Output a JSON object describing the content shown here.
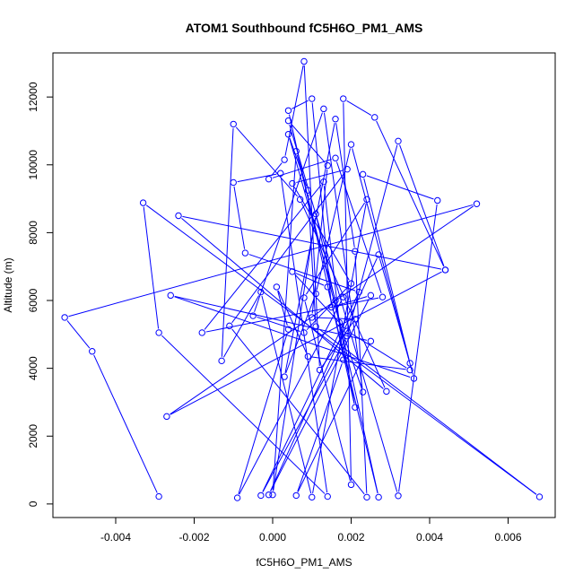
{
  "chart_data": {
    "type": "line",
    "title": "ATOM1 Southbound fC5H6O_PM1_AMS",
    "xlabel": "fC5H6O_PM1_AMS",
    "ylabel": "Altitude (m)",
    "xlim": [
      -0.0056,
      0.0072
    ],
    "ylim": [
      -400,
      13300
    ],
    "xticks": [
      -0.004,
      -0.002,
      0.0,
      0.002,
      0.004,
      0.006
    ],
    "xtick_labels": [
      "-0.004",
      "-0.002",
      "0.000",
      "0.002",
      "0.004",
      "0.006"
    ],
    "yticks": [
      0,
      2000,
      4000,
      6000,
      8000,
      10000,
      12000
    ],
    "ytick_labels": [
      "0",
      "2000",
      "4000",
      "6000",
      "8000",
      "10000",
      "12000"
    ],
    "grid": false,
    "series": [
      {
        "color": "#0000ff",
        "marker": "open-circle",
        "points": [
          [
            -0.0029,
            220
          ],
          [
            -0.0046,
            4500
          ],
          [
            -0.0053,
            5500
          ],
          [
            0.0052,
            8850
          ],
          [
            -0.0027,
            2580
          ],
          [
            0.0044,
            6900
          ],
          [
            -0.0024,
            8500
          ],
          [
            0.0029,
            3320
          ],
          [
            0.0007,
            8980
          ],
          [
            -0.001,
            11200
          ],
          [
            -0.0013,
            4220
          ],
          [
            -0.0003,
            6250
          ],
          [
            0.001,
            200
          ],
          [
            0.0024,
            8980
          ],
          [
            0.0008,
            6080
          ],
          [
            0.002,
            570
          ],
          [
            0.0018,
            11950
          ],
          [
            0.0026,
            11400
          ],
          [
            0.0044,
            6900
          ],
          [
            0.0032,
            10700
          ],
          [
            0.0019,
            4950
          ],
          [
            -0.0003,
            250
          ],
          [
            0.0022,
            6250
          ],
          [
            -0.0007,
            7400
          ],
          [
            -0.001,
            9480
          ],
          [
            0.0002,
            9750
          ],
          [
            0.0014,
            220
          ],
          [
            -0.0029,
            5050
          ],
          [
            -0.0033,
            8880
          ],
          [
            0.0068,
            210
          ],
          [
            0.0011,
            5230
          ],
          [
            0.0009,
            9250
          ],
          [
            0.0004,
            10900
          ],
          [
            0.0016,
            6000
          ],
          [
            0.0021,
            2850
          ],
          [
            0.0004,
            11600
          ],
          [
            0.001,
            11950
          ],
          [
            0.0015,
            5800
          ],
          [
            0.0025,
            6150
          ],
          [
            -0.0001,
            270
          ],
          [
            0.0027,
            7350
          ],
          [
            0.0035,
            4150
          ],
          [
            0.0023,
            9720
          ],
          [
            0.0042,
            8950
          ],
          [
            0.0032,
            240
          ],
          [
            0.0004,
            11300
          ],
          [
            0.0014,
            9980
          ],
          [
            0.001,
            5500
          ],
          [
            0.0021,
            5450
          ],
          [
            0.0012,
            3950
          ],
          [
            0.0008,
            13050
          ],
          [
            0.0003,
            10150
          ],
          [
            -0.0001,
            9580
          ],
          [
            0.0016,
            10200
          ],
          [
            0.0028,
            6100
          ],
          [
            -0.0018,
            5050
          ],
          [
            0.0013,
            9500
          ],
          [
            0.0018,
            4250
          ],
          [
            0.0006,
            250
          ],
          [
            0.0025,
            4800
          ],
          [
            -0.0026,
            6150
          ],
          [
            0.0036,
            3700
          ],
          [
            0.002,
            10600
          ],
          [
            0.0011,
            6200
          ],
          [
            0.0003,
            3750
          ],
          [
            0.0016,
            11350
          ],
          [
            0.0021,
            7450
          ],
          [
            0.0024,
            200
          ],
          [
            -0.0011,
            5250
          ],
          [
            0.0019,
            9870
          ],
          [
            0.0005,
            9450
          ],
          [
            0.002,
            6500
          ],
          [
            0.0008,
            5050
          ],
          [
            -0.0005,
            5550
          ],
          [
            0.0013,
            11650
          ],
          [
            0.0023,
            3300
          ],
          [
            0.0017,
            5350
          ],
          [
            0.0006,
            10400
          ],
          [
            0.0,
            270
          ],
          [
            0.0011,
            8550
          ],
          [
            0.0027,
            200
          ],
          [
            0.0014,
            6400
          ],
          [
            0.0005,
            6850
          ],
          [
            0.0019,
            5100
          ],
          [
            0.0035,
            3950
          ],
          [
            0.0009,
            4350
          ],
          [
            0.0001,
            6400
          ],
          [
            0.0004,
            5150
          ],
          [
            -0.0009,
            180
          ],
          [
            0.0018,
            6100
          ]
        ]
      }
    ]
  }
}
